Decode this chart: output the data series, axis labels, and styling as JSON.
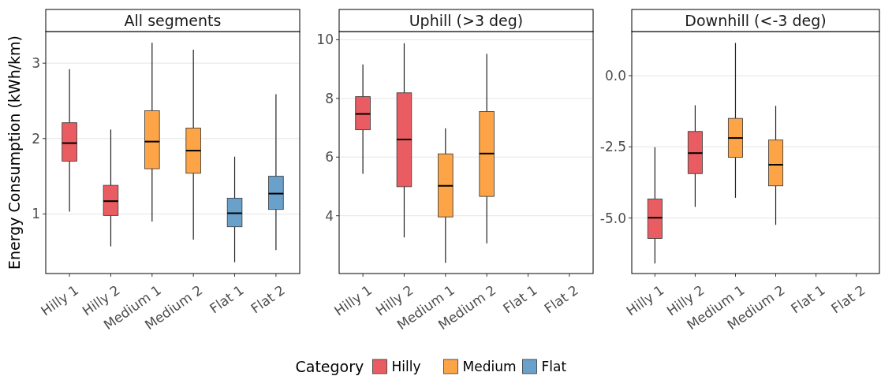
{
  "chart_data": [
    {
      "type": "box",
      "title": "All segments",
      "ylabel": "Energy Consumption (kWh/km)",
      "categories": [
        "Hilly 1",
        "Hilly 2",
        "Medium 1",
        "Medium 2",
        "Flat 1",
        "Flat 2"
      ],
      "ylim": [
        0.21,
        3.42
      ],
      "yticks": [
        1,
        2,
        3
      ],
      "grid": "y",
      "legend": "bottom",
      "legend_title": "Category",
      "series": [
        {
          "name": "Hilly",
          "color": "#e95c61",
          "boxes": [
            {
              "low": 1.03,
              "q1": 1.7,
              "median": 1.94,
              "q3": 2.21,
              "high": 2.92
            },
            {
              "low": 0.57,
              "q1": 0.98,
              "median": 1.17,
              "q3": 1.38,
              "high": 2.12
            },
            null,
            null,
            null,
            null
          ]
        },
        {
          "name": "Medium",
          "color": "#fda447",
          "boxes": [
            null,
            null,
            {
              "low": 0.9,
              "q1": 1.6,
              "median": 1.96,
              "q3": 2.37,
              "high": 3.27
            },
            {
              "low": 0.66,
              "q1": 1.54,
              "median": 1.84,
              "q3": 2.14,
              "high": 3.18
            },
            null,
            null
          ]
        },
        {
          "name": "Flat",
          "color": "#6aa1cb",
          "boxes": [
            null,
            null,
            null,
            null,
            {
              "low": 0.36,
              "q1": 0.83,
              "median": 1.01,
              "q3": 1.21,
              "high": 1.76
            },
            {
              "low": 0.52,
              "q1": 1.06,
              "median": 1.27,
              "q3": 1.5,
              "high": 2.59
            }
          ]
        }
      ]
    },
    {
      "type": "box",
      "title": "Uphill (>3 deg)",
      "categories": [
        "Hilly 1",
        "Hilly 2",
        "Medium 1",
        "Medium 2",
        "Flat 1",
        "Flat 2"
      ],
      "ylim": [
        2.03,
        10.28
      ],
      "yticks": [
        4,
        6,
        8,
        10
      ],
      "grid": "y",
      "series": [
        {
          "color": "#e95c61",
          "boxes": [
            {
              "low": 5.43,
              "q1": 6.93,
              "median": 7.47,
              "q3": 8.06,
              "high": 9.16
            },
            {
              "low": 3.26,
              "q1": 4.99,
              "median": 6.6,
              "q3": 8.19,
              "high": 9.88
            },
            null,
            null,
            null,
            null
          ]
        },
        {
          "color": "#fda447",
          "boxes": [
            null,
            null,
            {
              "low": 2.39,
              "q1": 3.96,
              "median": 5.02,
              "q3": 6.11,
              "high": 6.98
            },
            {
              "low": 3.06,
              "q1": 4.66,
              "median": 6.12,
              "q3": 7.55,
              "high": 9.52
            },
            null,
            null
          ]
        }
      ]
    },
    {
      "type": "box",
      "title": "Downhill (<-3 deg)",
      "categories": [
        "Hilly 1",
        "Hilly 2",
        "Medium 1",
        "Medium 2",
        "Flat 1",
        "Flat 2"
      ],
      "ylim": [
        -6.95,
        1.55
      ],
      "yticks": [
        {
          "value": -5,
          "label": "-5.0"
        },
        {
          "value": -2.5,
          "label": "-2.5"
        },
        {
          "value": 0,
          "label": "0.0"
        }
      ],
      "grid": "y",
      "series": [
        {
          "color": "#e95c61",
          "boxes": [
            {
              "low": -6.6,
              "q1": -5.72,
              "median": -4.99,
              "q3": -4.33,
              "high": -2.51
            },
            {
              "low": -4.61,
              "q1": -3.44,
              "median": -2.72,
              "q3": -1.96,
              "high": -1.04
            },
            null,
            null,
            null,
            null
          ]
        },
        {
          "color": "#fda447",
          "boxes": [
            null,
            null,
            {
              "low": -4.29,
              "q1": -2.87,
              "median": -2.19,
              "q3": -1.5,
              "high": 1.15
            },
            {
              "low": -5.24,
              "q1": -3.87,
              "median": -3.13,
              "q3": -2.26,
              "high": -1.06
            },
            null,
            null
          ]
        }
      ]
    }
  ]
}
